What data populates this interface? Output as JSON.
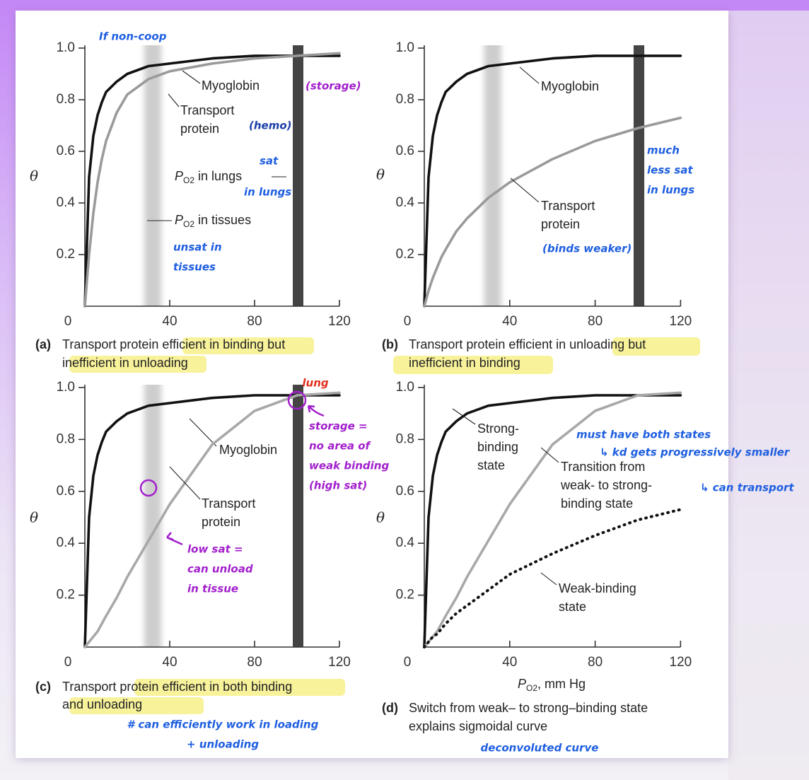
{
  "chart_data": [
    {
      "type": "line",
      "label": "(a)",
      "caption": [
        "Transport protein efficient in binding but",
        "inefficient in unloading"
      ],
      "ylabel": "θ",
      "x": [
        0,
        2,
        4,
        6,
        8,
        10,
        15,
        20,
        30,
        40,
        60,
        80,
        100,
        120
      ],
      "xlim": [
        0,
        120
      ],
      "ylim": [
        0,
        1
      ],
      "xticks": [
        0,
        40,
        80,
        120
      ],
      "yticks": [
        0.2,
        0.4,
        0.6,
        0.8,
        {
          "value": 1,
          "label": "1.0"
        }
      ],
      "bands": [
        {
          "from": 28,
          "to": 36,
          "color": "#bdbdbd"
        },
        {
          "from": 98,
          "to": 103,
          "color": "#3a3a3a"
        }
      ],
      "series": [
        {
          "label_lines": [
            "Myoglobin"
          ],
          "color": "#111111",
          "style": "solid",
          "values": [
            0,
            0.5,
            0.66,
            0.74,
            0.79,
            0.83,
            0.87,
            0.9,
            0.93,
            0.94,
            0.96,
            0.97,
            0.97,
            0.97
          ]
        },
        {
          "label_lines": [
            "Transport",
            "protein"
          ],
          "color": "#9a9a9a",
          "style": "solid",
          "values": [
            0,
            0.2,
            0.36,
            0.48,
            0.57,
            0.64,
            0.75,
            0.82,
            0.88,
            0.91,
            0.94,
            0.96,
            0.97,
            0.98
          ]
        }
      ],
      "annotations": [
        {
          "symbol": "P",
          "sub": "O2",
          "text": " in lungs"
        },
        {
          "symbol": "P",
          "sub": "O2",
          "text": " in tissues"
        }
      ],
      "notes": [
        {
          "lines": [
            "If non-coop"
          ],
          "color": "#1f5fe0"
        },
        {
          "lines": [
            "(storage)"
          ],
          "color": "#a21fcc"
        },
        {
          "lines": [
            "(hemo)"
          ],
          "color": "#1a3fa8"
        },
        {
          "lines": [
            "sat"
          ],
          "color": "#1f5fe0"
        },
        {
          "lines": [
            "in lungs"
          ],
          "color": "#1f5fe0"
        },
        {
          "lines": [
            "unsat in",
            "tissues"
          ],
          "color": "#1f5fe0"
        }
      ]
    },
    {
      "type": "line",
      "label": "(b)",
      "caption": [
        "Transport protein efficient in unloading but",
        "inefficient in binding"
      ],
      "ylabel": "θ",
      "x": [
        0,
        2,
        4,
        6,
        8,
        10,
        15,
        20,
        30,
        40,
        60,
        80,
        100,
        120
      ],
      "xlim": [
        0,
        120
      ],
      "ylim": [
        0,
        1
      ],
      "xticks": [
        0,
        40,
        80,
        120
      ],
      "yticks": [
        0.2,
        0.4,
        0.6,
        0.8,
        {
          "value": 1,
          "label": "1.0"
        }
      ],
      "bands": [
        {
          "from": 28,
          "to": 36,
          "color": "#bdbdbd"
        },
        {
          "from": 98,
          "to": 103,
          "color": "#3a3a3a"
        }
      ],
      "series": [
        {
          "label_lines": [
            "Myoglobin"
          ],
          "color": "#111111",
          "style": "solid",
          "values": [
            0,
            0.5,
            0.66,
            0.74,
            0.79,
            0.83,
            0.87,
            0.9,
            0.93,
            0.94,
            0.96,
            0.97,
            0.97,
            0.97
          ]
        },
        {
          "label_lines": [
            "Transport",
            "protein"
          ],
          "color": "#9a9a9a",
          "style": "solid",
          "values": [
            0,
            0.06,
            0.11,
            0.15,
            0.19,
            0.22,
            0.29,
            0.34,
            0.42,
            0.48,
            0.57,
            0.64,
            0.69,
            0.73
          ]
        }
      ],
      "annotations": [],
      "notes": [
        {
          "lines": [
            "much",
            "less sat",
            "in lungs"
          ],
          "color": "#1f5fe0"
        },
        {
          "lines": [
            "(binds weaker)"
          ],
          "color": "#1f5fe0"
        }
      ]
    },
    {
      "type": "line",
      "label": "(c)",
      "caption": [
        "Transport protein efficient in both binding",
        "and unloading"
      ],
      "ylabel": "θ",
      "x": [
        0,
        2,
        4,
        6,
        8,
        10,
        15,
        20,
        30,
        40,
        60,
        80,
        100,
        120
      ],
      "xlim": [
        0,
        120
      ],
      "ylim": [
        0,
        1
      ],
      "xticks": [
        0,
        40,
        80,
        120
      ],
      "yticks": [
        0.2,
        0.4,
        0.6,
        0.8,
        {
          "value": 1,
          "label": "1.0"
        }
      ],
      "bands": [
        {
          "from": 28,
          "to": 36,
          "color": "#bdbdbd"
        },
        {
          "from": 98,
          "to": 103,
          "color": "#3a3a3a"
        }
      ],
      "series": [
        {
          "label_lines": [
            "Myoglobin"
          ],
          "color": "#111111",
          "style": "solid",
          "values": [
            0,
            0.5,
            0.66,
            0.74,
            0.79,
            0.83,
            0.87,
            0.9,
            0.93,
            0.94,
            0.96,
            0.97,
            0.97,
            0.97
          ]
        },
        {
          "label_lines": [
            "Transport",
            "protein"
          ],
          "color": "#a8a8a8",
          "style": "solid",
          "values": [
            0,
            0.02,
            0.04,
            0.06,
            0.09,
            0.12,
            0.19,
            0.27,
            0.41,
            0.55,
            0.78,
            0.91,
            0.97,
            0.98
          ]
        }
      ],
      "annotations": [],
      "notes": [
        {
          "lines": [
            "lung"
          ],
          "color": "#e0301e"
        },
        {
          "lines": [
            "storage =",
            "no area of",
            "weak binding",
            "(high sat)"
          ],
          "color": "#a21fcc"
        },
        {
          "lines": [
            "low sat =",
            "can unload",
            "in tissue"
          ],
          "color": "#a21fcc"
        },
        {
          "lines": [
            "# can efficiently work in loading",
            "+ unloading"
          ],
          "color": "#1f5fe0"
        }
      ]
    },
    {
      "type": "line",
      "label": "(d)",
      "caption": [
        "Switch from weak– to strong–binding state",
        "explains sigmoidal curve"
      ],
      "ylabel": "θ",
      "xlabel": {
        "symbol": "P",
        "sub": "O2",
        "text": ", mm Hg"
      },
      "x": [
        0,
        2,
        4,
        6,
        8,
        10,
        15,
        20,
        30,
        40,
        60,
        80,
        100,
        120
      ],
      "xlim": [
        0,
        120
      ],
      "ylim": [
        0,
        1
      ],
      "xticks": [
        0,
        40,
        80,
        120
      ],
      "yticks": [
        0.2,
        0.4,
        0.6,
        0.8,
        {
          "value": 1,
          "label": "1.0"
        }
      ],
      "bands": [],
      "series": [
        {
          "label_lines": [
            "Strong-",
            "binding",
            "state"
          ],
          "color": "#111111",
          "style": "solid",
          "values": [
            0,
            0.5,
            0.66,
            0.74,
            0.79,
            0.83,
            0.87,
            0.9,
            0.93,
            0.94,
            0.96,
            0.97,
            0.97,
            0.97
          ]
        },
        {
          "label_lines": [
            "Transition from",
            "weak- to strong-",
            "binding state"
          ],
          "color": "#a8a8a8",
          "style": "solid",
          "values": [
            0,
            0.02,
            0.04,
            0.06,
            0.09,
            0.12,
            0.19,
            0.27,
            0.41,
            0.55,
            0.78,
            0.91,
            0.97,
            0.98
          ]
        },
        {
          "label_lines": [
            "Weak-binding",
            "state"
          ],
          "color": "#111111",
          "style": "dotted",
          "values": [
            0,
            0.02,
            0.04,
            0.05,
            0.07,
            0.09,
            0.13,
            0.16,
            0.22,
            0.28,
            0.36,
            0.43,
            0.49,
            0.53
          ]
        }
      ],
      "annotations": [],
      "notes": [
        {
          "lines": [
            "must have both states"
          ],
          "color": "#1f5fe0"
        },
        {
          "lines": [
            "↳ kd gets progressively smaller"
          ],
          "color": "#1f5fe0"
        },
        {
          "lines": [
            "↳ can transport"
          ],
          "color": "#1f5fe0"
        },
        {
          "lines": [
            "deconvoluted curve"
          ],
          "color": "#1f5fe0"
        }
      ]
    }
  ]
}
